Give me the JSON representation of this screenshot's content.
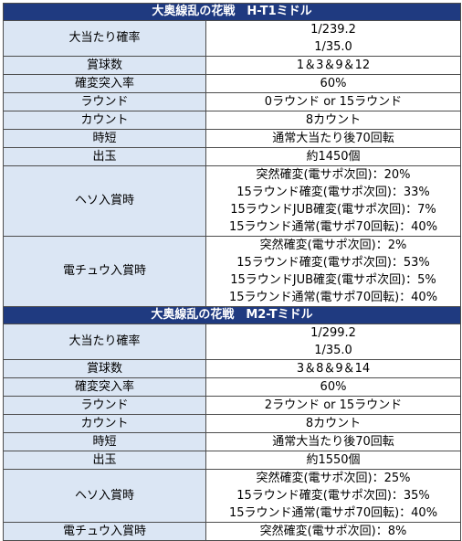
{
  "sections": [
    {
      "title": "大奥線乱の花戦　H-T1ミドル",
      "rows": [
        {
          "label": "大当たり確率",
          "lines": [
            "1/239.2",
            "1/35.0"
          ]
        },
        {
          "label": "賞球数",
          "lines": [
            "1＆3＆9＆12"
          ]
        },
        {
          "label": "確変突入率",
          "lines": [
            "60%"
          ]
        },
        {
          "label": "ラウンド",
          "lines": [
            "0ラウンド or 15ラウンド"
          ]
        },
        {
          "label": "カウント",
          "lines": [
            "8カウント"
          ]
        },
        {
          "label": "時短",
          "lines": [
            "通常大当たり後70回転"
          ]
        },
        {
          "label": "出玉",
          "lines": [
            "約1450個"
          ]
        },
        {
          "label": "ヘソ入賞時",
          "lines": [
            "突然確変(電サポ次回)：20%",
            "15ラウンド確変(電サポ次回)：33%",
            "15ラウンドJUB確変(電サポ次回)：7%",
            "15ラウンド通常(電サポ70回転)：40%"
          ]
        },
        {
          "label": "電チュウ入賞時",
          "lines": [
            "突然確変(電サポ次回)：2%",
            "15ラウンド確変(電サポ次回)：53%",
            "15ラウンドJUB確変(電サポ次回)：5%",
            "15ラウンド通常(電サポ70回転)：40%"
          ]
        }
      ]
    },
    {
      "title": "大奥線乱の花戦　M2-Tミドル",
      "rows": [
        {
          "label": "大当たり確率",
          "lines": [
            "1/299.2",
            "1/35.0"
          ]
        },
        {
          "label": "賞球数",
          "lines": [
            "3＆8＆9＆14"
          ]
        },
        {
          "label": "確変突入率",
          "lines": [
            "60%"
          ]
        },
        {
          "label": "ラウンド",
          "lines": [
            "2ラウンド or 15ラウンド"
          ]
        },
        {
          "label": "カウント",
          "lines": [
            "8カウント"
          ]
        },
        {
          "label": "時短",
          "lines": [
            "通常大当たり後70回転"
          ]
        },
        {
          "label": "出玉",
          "lines": [
            "約1550個"
          ]
        },
        {
          "label": "ヘソ入賞時",
          "lines": [
            "突然確変(電サポ次回)：25%",
            "15ラウンド確変(電サポ次回)：35%",
            "15ラウンド通常(電サポ70回転)：40%"
          ]
        },
        {
          "label": "電チュウ入賞時",
          "lines": [
            "突然確変(電サポ次回)：8%"
          ]
        }
      ]
    }
  ]
}
